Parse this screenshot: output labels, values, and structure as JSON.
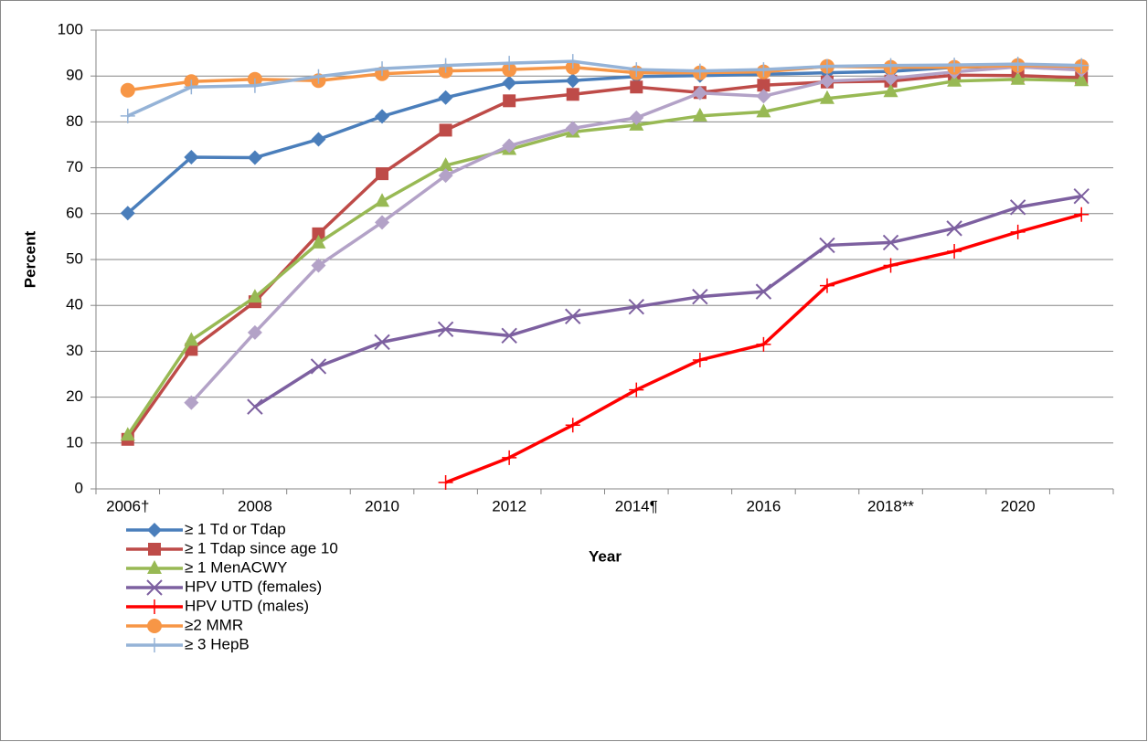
{
  "chart_data": {
    "type": "line",
    "x_label": "Year",
    "y_label": "Percent",
    "categories": [
      "2006†",
      null,
      "2008",
      null,
      "2010",
      null,
      "2012",
      null,
      "2014¶",
      null,
      "2016",
      null,
      "2018**",
      null,
      "2020",
      null
    ],
    "ylim": [
      0,
      100
    ],
    "yticks": [
      0,
      10,
      20,
      30,
      40,
      50,
      60,
      70,
      80,
      90,
      100
    ],
    "grid": true,
    "legend": "bottom-left",
    "series": [
      {
        "name": "≥ 1 Td or Tdap",
        "color": "#4a7ebb",
        "marker": "diamond",
        "values": [
          60.1,
          72.3,
          72.2,
          76.2,
          81.2,
          85.3,
          88.5,
          89.0,
          89.9,
          90.1,
          90.4,
          90.7,
          91.0,
          91.9,
          92.0,
          91.6
        ]
      },
      {
        "name": "≥ 1 Tdap since age 10",
        "color": "#be4b48",
        "marker": "square",
        "values": [
          10.8,
          30.4,
          40.8,
          55.6,
          68.7,
          78.2,
          84.6,
          86.0,
          87.6,
          86.4,
          88.0,
          88.7,
          88.9,
          90.2,
          90.1,
          89.6
        ]
      },
      {
        "name": "≥ 1 MenACWY",
        "color": "#98b954",
        "marker": "triangle",
        "values": [
          11.7,
          32.4,
          41.8,
          53.6,
          62.7,
          70.5,
          74.0,
          77.8,
          79.3,
          81.3,
          82.2,
          85.1,
          86.6,
          88.9,
          89.3,
          89.0
        ]
      },
      {
        "name": "HPV UTD (females)",
        "color": "#7d60a0",
        "marker": "x",
        "values": [
          null,
          null,
          17.9,
          26.7,
          32.0,
          34.8,
          33.4,
          37.6,
          39.7,
          41.9,
          43.0,
          53.1,
          53.7,
          56.8,
          61.4,
          63.8
        ]
      },
      {
        "name": "HPV UTD (males)",
        "color": "#ff0000",
        "marker": "plus",
        "values": [
          null,
          null,
          null,
          null,
          null,
          1.4,
          6.8,
          13.9,
          21.6,
          28.1,
          31.5,
          44.3,
          48.7,
          51.8,
          56.0,
          59.8
        ]
      },
      {
        "color": "#b3a2c7",
        "marker": "diamond",
        "values": [
          null,
          18.8,
          34.1,
          48.7,
          58.1,
          68.3,
          74.8,
          78.6,
          80.9,
          86.3,
          85.6,
          88.9,
          89.5,
          90.9,
          92.0,
          91.3
        ]
      },
      {
        "name": "≥2 MMR",
        "color": "#f79646",
        "marker": "circle",
        "values": [
          86.9,
          88.8,
          89.3,
          89.0,
          90.5,
          91.1,
          91.4,
          91.9,
          90.7,
          90.7,
          90.9,
          92.1,
          91.9,
          91.9,
          92.3,
          92.1
        ]
      },
      {
        "name": "≥ 3 HepB",
        "color": "#95b3d7",
        "marker": "plus",
        "values": [
          81.3,
          87.6,
          87.9,
          89.9,
          91.6,
          92.3,
          92.8,
          93.2,
          91.4,
          91.1,
          91.4,
          92.1,
          92.3,
          92.4,
          92.6,
          92.3
        ]
      }
    ]
  }
}
